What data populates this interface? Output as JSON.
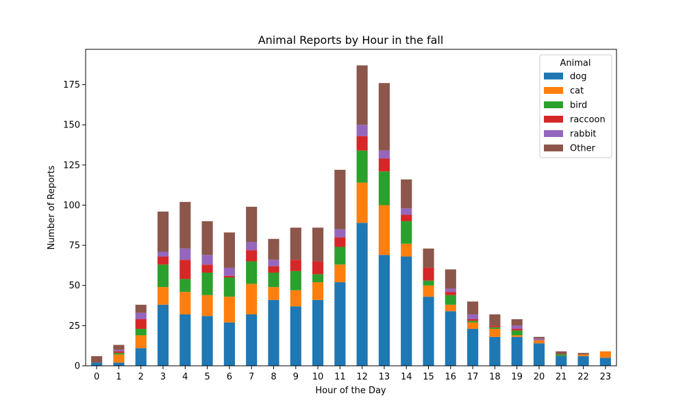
{
  "chart_data": {
    "type": "bar",
    "stacked": true,
    "title": "Animal Reports by Hour in the fall",
    "xlabel": "Hour of the Day",
    "ylabel": "Number of Reports",
    "ylim": [
      0,
      197
    ],
    "yticks": [
      0,
      25,
      50,
      75,
      100,
      125,
      150,
      175
    ],
    "legend": {
      "title": "Animal",
      "placement": "top-right"
    },
    "categories": [
      "0",
      "1",
      "2",
      "3",
      "4",
      "5",
      "6",
      "7",
      "8",
      "9",
      "10",
      "11",
      "12",
      "13",
      "14",
      "15",
      "16",
      "17",
      "18",
      "19",
      "20",
      "21",
      "22",
      "23"
    ],
    "series": [
      {
        "name": "dog",
        "color": "#1f77b4",
        "values": [
          2,
          2,
          11,
          38,
          32,
          31,
          27,
          32,
          41,
          37,
          41,
          52,
          89,
          69,
          68,
          43,
          34,
          23,
          18,
          18,
          14,
          6,
          6,
          5
        ]
      },
      {
        "name": "cat",
        "color": "#ff7f0e",
        "values": [
          0,
          5,
          8,
          11,
          14,
          13,
          16,
          19,
          8,
          10,
          11,
          11,
          25,
          31,
          8,
          7,
          4,
          4,
          5,
          1,
          2,
          0,
          1,
          4
        ]
      },
      {
        "name": "bird",
        "color": "#2ca02c",
        "values": [
          0,
          1,
          4,
          14,
          8,
          14,
          12,
          14,
          9,
          12,
          5,
          11,
          20,
          21,
          14,
          3,
          6,
          1,
          1,
          3,
          0,
          1,
          0,
          0
        ]
      },
      {
        "name": "raccoon",
        "color": "#d62728",
        "values": [
          0,
          1,
          6,
          5,
          12,
          5,
          1,
          7,
          4,
          7,
          8,
          6,
          9,
          8,
          4,
          8,
          2,
          1,
          1,
          1,
          0,
          0,
          0,
          0
        ]
      },
      {
        "name": "rabbit",
        "color": "#9467bd",
        "values": [
          0,
          1,
          4,
          3,
          7,
          6,
          5,
          5,
          4,
          0,
          0,
          5,
          7,
          5,
          4,
          0,
          2,
          3,
          0,
          2,
          1,
          0,
          0,
          0
        ]
      },
      {
        "name": "Other",
        "color": "#8c564b",
        "values": [
          4,
          3,
          5,
          25,
          29,
          21,
          22,
          22,
          13,
          20,
          21,
          37,
          37,
          42,
          18,
          12,
          12,
          8,
          7,
          4,
          1,
          2,
          1,
          0
        ]
      }
    ]
  }
}
